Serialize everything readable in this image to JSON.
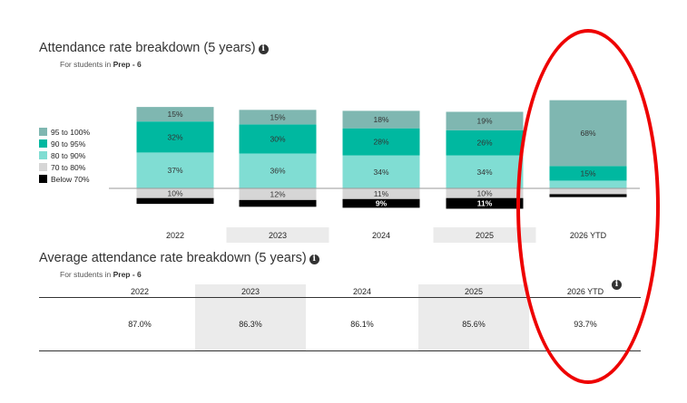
{
  "section1": {
    "title": "Attendance rate breakdown (5 years)",
    "subtitle_prefix": "For students in ",
    "subtitle_bold": "Prep - 6",
    "info_icon": "info-icon"
  },
  "section2": {
    "title": "Average attendance rate breakdown (5 years)",
    "subtitle_prefix": "For students in ",
    "subtitle_bold": "Prep - 6",
    "info_icon": "info-icon"
  },
  "legend": [
    {
      "label": "95 to 100%",
      "color": "#7fb7b1"
    },
    {
      "label": "90 to 95%",
      "color": "#00b8a0"
    },
    {
      "label": "80 to 90%",
      "color": "#80ddd3"
    },
    {
      "label": "70 to 80%",
      "color": "#d6d6d6"
    },
    {
      "label": "Below 70%",
      "color": "#000000"
    }
  ],
  "chart_data": {
    "type": "bar",
    "stacked": true,
    "title": "Attendance rate breakdown (5 years)",
    "categories": [
      "2022",
      "2023",
      "2024",
      "2025",
      "2026 YTD"
    ],
    "series": [
      {
        "name": "95 to 100%",
        "values": [
          15,
          15,
          18,
          19,
          68
        ],
        "labels": [
          "15%",
          "15%",
          "18%",
          "19%",
          "68%"
        ]
      },
      {
        "name": "90 to 95%",
        "values": [
          32,
          30,
          28,
          26,
          15
        ],
        "labels": [
          "32%",
          "30%",
          "28%",
          "26%",
          "15%"
        ]
      },
      {
        "name": "80 to 90%",
        "values": [
          37,
          36,
          34,
          34,
          8
        ],
        "labels": [
          "37%",
          "36%",
          "34%",
          "34%",
          ""
        ]
      },
      {
        "name": "70 to 80%",
        "values": [
          10,
          12,
          11,
          10,
          6
        ],
        "labels": [
          "10%",
          "12%",
          "11%",
          "10%",
          ""
        ]
      },
      {
        "name": "Below 70%",
        "values": [
          6,
          7,
          9,
          11,
          3
        ],
        "labels": [
          "",
          "",
          "9%",
          "11%",
          ""
        ]
      }
    ],
    "shaded_categories": [
      "2023",
      "2025"
    ],
    "legend_position": "left"
  },
  "table": {
    "headers": [
      "2022",
      "2023",
      "2024",
      "2025",
      "2026 YTD"
    ],
    "values": [
      "87.0%",
      "86.3%",
      "86.1%",
      "85.6%",
      "93.7%"
    ]
  },
  "annotation": {
    "shape": "ellipse",
    "color": "#ee0000",
    "target": "2026 YTD"
  }
}
